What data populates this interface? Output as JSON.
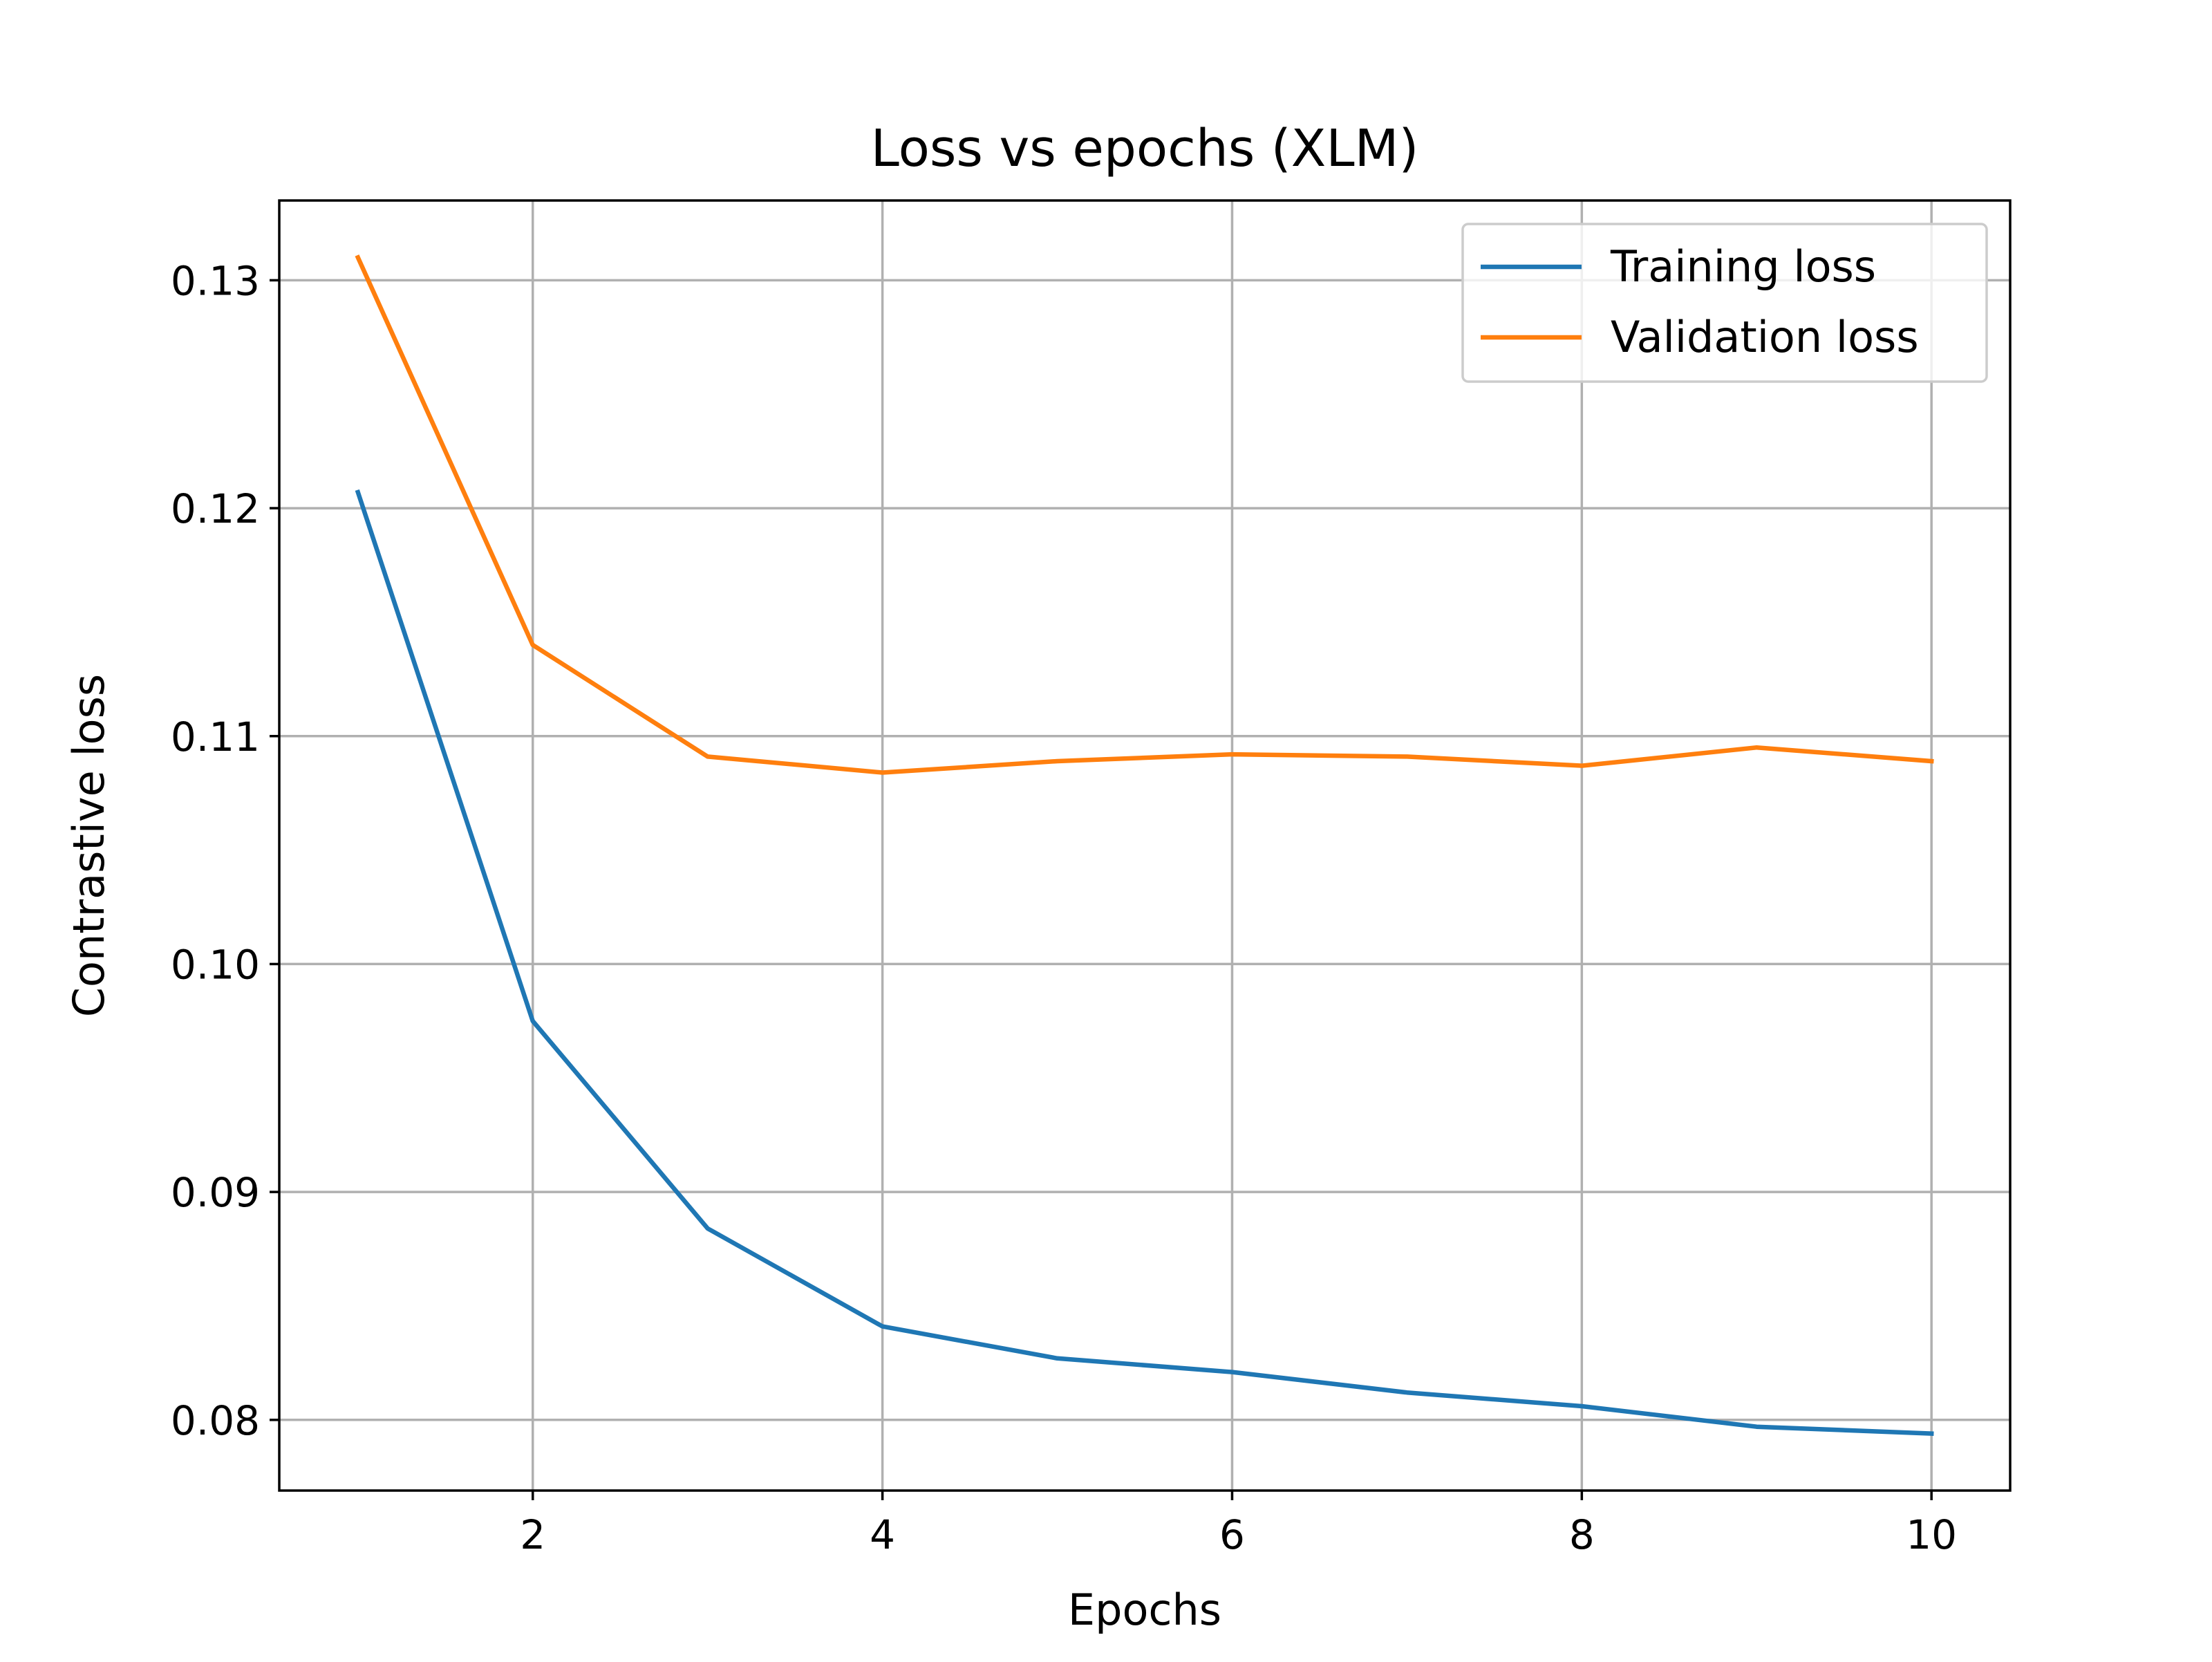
{
  "chart_data": {
    "type": "line",
    "title": "Loss vs epochs (XLM)",
    "xlabel": "Epochs",
    "ylabel": "Contrastive loss",
    "xlim": [
      0.55,
      10.45
    ],
    "ylim": [
      0.0769,
      0.1335
    ],
    "xticks": [
      2,
      4,
      6,
      8,
      10
    ],
    "xtick_labels": [
      "2",
      "4",
      "6",
      "8",
      "10"
    ],
    "yticks": [
      0.08,
      0.09,
      0.1,
      0.11,
      0.12,
      0.13
    ],
    "ytick_labels": [
      "0.08",
      "0.09",
      "0.10",
      "0.11",
      "0.12",
      "0.13"
    ],
    "grid": true,
    "legend_position": "top-right",
    "x": [
      1,
      2,
      3,
      4,
      5,
      6,
      7,
      8,
      9,
      10
    ],
    "series": [
      {
        "name": "Training loss",
        "color": "#1f77b4",
        "values": [
          0.1207,
          0.0975,
          0.0884,
          0.0841,
          0.0827,
          0.0821,
          0.0812,
          0.0806,
          0.0797,
          0.0794
        ]
      },
      {
        "name": "Validation loss",
        "color": "#ff7f0e",
        "values": [
          0.131,
          0.114,
          0.1091,
          0.1084,
          0.1089,
          0.1092,
          0.1091,
          0.1087,
          0.1095,
          0.1089
        ]
      }
    ]
  }
}
